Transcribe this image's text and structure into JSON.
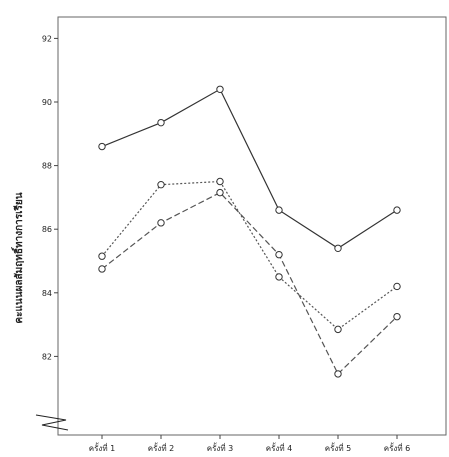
{
  "chart_data": {
    "type": "line",
    "title": "",
    "xlabel": "",
    "ylabel": "คะแนนผลสัมฤทธิ์ทางการเรียน",
    "categories": [
      "ครั้งที่ 1",
      "ครั้งที่ 2",
      "ครั้งที่ 3",
      "ครั้งที่ 4",
      "ครั้งที่ 5",
      "ครั้งที่ 6"
    ],
    "yticks": [
      82,
      84,
      86,
      88,
      90,
      92
    ],
    "ylim": [
      80,
      92.6
    ],
    "axis_break": true,
    "grid": false,
    "legend": "none",
    "series": [
      {
        "values": [
          88.6,
          89.35,
          90.4,
          86.6,
          85.4,
          86.6
        ],
        "line_style": "solid",
        "marker": "circle",
        "color": "#333333"
      },
      {
        "values": [
          85.15,
          87.4,
          87.5,
          84.5,
          82.85,
          84.2
        ],
        "line_style": "dotted",
        "marker": "circle",
        "color": "#555555"
      },
      {
        "values": [
          84.75,
          86.2,
          87.15,
          85.2,
          81.45,
          83.25
        ],
        "line_style": "dashed",
        "marker": "circle",
        "color": "#555555"
      }
    ]
  }
}
